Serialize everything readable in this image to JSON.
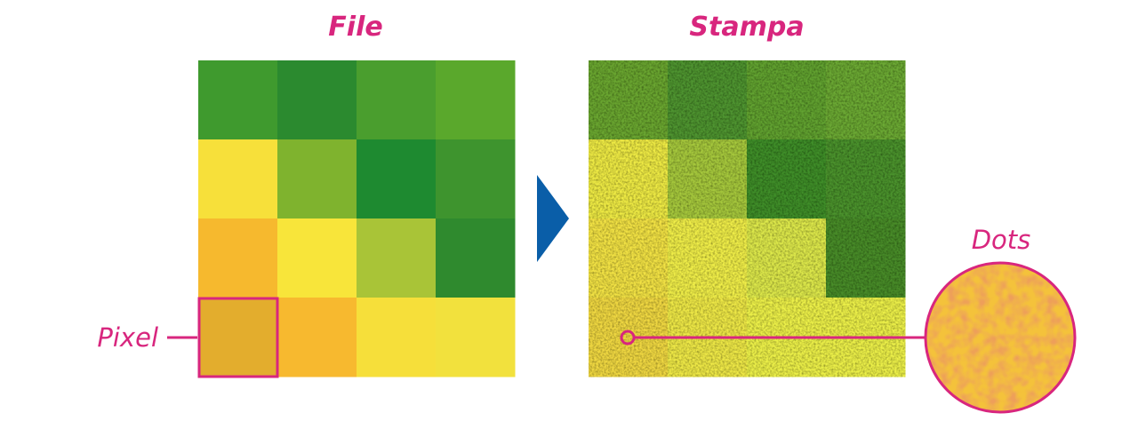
{
  "titles": {
    "file": "File",
    "print": "Stampa"
  },
  "labels": {
    "pixel": "Pixel",
    "dots": "Dots"
  }
}
